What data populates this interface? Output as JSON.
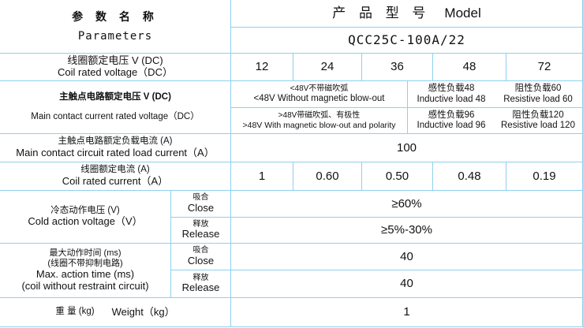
{
  "header": {
    "param_cn": "参 数 名 称",
    "param_en": "Parameters",
    "model_cn": "产 品 型 号",
    "model_en": "Model",
    "model_value": "QCC25C-100A/22"
  },
  "coil_voltage": {
    "cn": "线圈额定电压 V (DC)",
    "en": "Coil rated voltage（DC）",
    "values": [
      "12",
      "24",
      "36",
      "48",
      "72"
    ]
  },
  "main_voltage": {
    "cn": "主触点电路额定电压 V (DC)",
    "en": "Main contact current rated voltage（DC）",
    "row1": {
      "cn": "<48V不带磁吹弧",
      "en": "<48V Without magnetic blow-out",
      "ind_cn": "感性负载48",
      "ind_en": "Inductive load 48",
      "res_cn": "阻性负载60",
      "res_en": "Resistive load 60"
    },
    "row2": {
      "cn": ">48V带磁吹弧、有极性",
      "en": ">48V With magnetic blow-out and polarity",
      "ind_cn": "感性负载96",
      "ind_en": "Inductive load 96",
      "res_cn": "阻性负载120",
      "res_en": "Resistive load 120"
    }
  },
  "load_current": {
    "cn": "主触点电路额定负载电流 (A)",
    "en": "Main contact circuit rated load current（A）",
    "value": "100"
  },
  "coil_current": {
    "cn": "线圈额定电流 (A)",
    "en": "Coil rated current（A）",
    "values": [
      "1",
      "0.60",
      "0.50",
      "0.48",
      "0.19"
    ]
  },
  "cold_action": {
    "cn": "冷态动作电压 (V)",
    "en": "Cold action voltage（V）",
    "close_cn": "吸合",
    "close_en": "Close",
    "close_value": "≥60%",
    "release_cn": "释放",
    "release_en": "Release",
    "release_value": "≥5%-30%"
  },
  "max_time": {
    "cn1": "最大动作时间 (ms)",
    "cn2": "(线圈不带抑制电路)",
    "en1": "Max. action time (ms)",
    "en2": "(coil without restraint circuit)",
    "close_cn": "吸合",
    "close_en": "Close",
    "close_value": "40",
    "release_cn": "释放",
    "release_en": "Release",
    "release_value": "40"
  },
  "weight": {
    "cn": "重 量 (kg)",
    "en": "Weight（kg）",
    "value": "1"
  },
  "colors": {
    "border": "#8fd0ee",
    "text": "#111111"
  }
}
